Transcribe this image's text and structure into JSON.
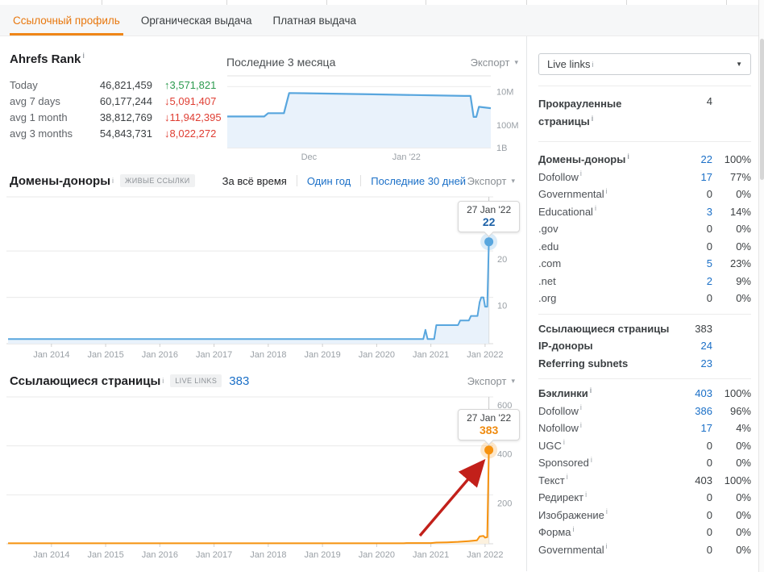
{
  "misc": {
    "export_label": "Экспорт",
    "caret_down": "▾",
    "select_caret": "▼",
    "info_glyph": "i",
    "up_arrow": "↑",
    "down_arrow": "↓"
  },
  "tabs": {
    "items": [
      {
        "id": "backlink-profile",
        "label": "Ссылочный профиль",
        "active": true
      },
      {
        "id": "organic-search",
        "label": "Органическая выдача",
        "active": false
      },
      {
        "id": "paid-search",
        "label": "Платная выдача",
        "active": false
      }
    ]
  },
  "rank_panel": {
    "title": "Ahrefs Rank",
    "rows": [
      {
        "label": "Today",
        "value": "46,821,459",
        "delta": "3,571,821",
        "dir": "up"
      },
      {
        "label": "avg 7 days",
        "value": "60,177,244",
        "delta": "5,091,407",
        "dir": "down"
      },
      {
        "label": "avg 1 month",
        "value": "38,812,769",
        "delta": "11,942,395",
        "dir": "down"
      },
      {
        "label": "avg 3 months",
        "value": "54,843,731",
        "delta": "8,022,272",
        "dir": "down"
      }
    ]
  },
  "sections": {
    "rank_chart": {
      "title": "Последние 3 месяца"
    },
    "domains": {
      "title": "Домены-доноры",
      "badge": "ЖИВЫЕ ССЫЛКИ",
      "filters": [
        {
          "label": "За всё время",
          "active": true
        },
        {
          "label": "Один год",
          "active": false
        },
        {
          "label": "Последние 30 дней",
          "active": false
        }
      ]
    },
    "pages": {
      "title": "Ссылающиеся страницы",
      "badge": "LIVE LINKS",
      "count": "383"
    }
  },
  "sidebar": {
    "filter_select": {
      "value": "Live links"
    },
    "crawled": {
      "label": "Прокрауленные страницы",
      "value": "4"
    },
    "groups": [
      {
        "name": "referring-domains",
        "rows": [
          {
            "label": "Домены-доноры",
            "info": true,
            "value": "22",
            "pct": "100%",
            "link": true,
            "bold": true
          },
          {
            "label": "Dofollow",
            "info": true,
            "value": "17",
            "pct": "77%",
            "link": true
          },
          {
            "label": "Governmental",
            "info": true,
            "value": "0",
            "pct": "0%"
          },
          {
            "label": "Educational",
            "info": true,
            "value": "3",
            "pct": "14%",
            "link": true
          },
          {
            "label": ".gov",
            "value": "0",
            "pct": "0%"
          },
          {
            "label": ".edu",
            "value": "0",
            "pct": "0%"
          },
          {
            "label": ".com",
            "value": "5",
            "pct": "23%",
            "link": true
          },
          {
            "label": ".net",
            "value": "2",
            "pct": "9%",
            "link": true
          },
          {
            "label": ".org",
            "value": "0",
            "pct": "0%"
          }
        ]
      },
      {
        "name": "referring-pages",
        "rows": [
          {
            "label": "Ссылающиеся страницы",
            "value": "383",
            "bold": true
          },
          {
            "label": "IP-доноры",
            "value": "24",
            "link": true,
            "bold": true
          },
          {
            "label": "Referring subnets",
            "value": "23",
            "link": true,
            "bold": true
          }
        ]
      },
      {
        "name": "backlinks",
        "rows": [
          {
            "label": "Бэклинки",
            "info": true,
            "value": "403",
            "pct": "100%",
            "link": true,
            "bold": true
          },
          {
            "label": "Dofollow",
            "info": true,
            "value": "386",
            "pct": "96%",
            "link": true
          },
          {
            "label": "Nofollow",
            "info": true,
            "value": "17",
            "pct": "4%",
            "link": true
          },
          {
            "label": "UGC",
            "info": true,
            "value": "0",
            "pct": "0%"
          },
          {
            "label": "Sponsored",
            "info": true,
            "value": "0",
            "pct": "0%"
          },
          {
            "label": "Текст",
            "info": true,
            "value": "403",
            "pct": "100%"
          },
          {
            "label": "Редирект",
            "info": true,
            "value": "0",
            "pct": "0%"
          },
          {
            "label": "Изображение",
            "info": true,
            "value": "0",
            "pct": "0%"
          },
          {
            "label": "Форма",
            "info": true,
            "value": "0",
            "pct": "0%"
          },
          {
            "label": "Governmental",
            "info": true,
            "value": "0",
            "pct": "0%"
          }
        ]
      }
    ]
  },
  "chart_data": [
    {
      "id": "ahrefs-rank-last-3-months",
      "type": "area",
      "title": "Последние 3 месяца",
      "scale": "inverted log rank (lower number = better, top of chart)",
      "y_gridlines": [
        {
          "pos": 0.15,
          "label": "10M"
        },
        {
          "pos": 0.617,
          "label": "100M"
        },
        {
          "pos": 1,
          "label": "1B"
        }
      ],
      "x_labels": [
        {
          "pct": 31,
          "label": "Dec"
        },
        {
          "pct": 68,
          "label": "Jan '22"
        }
      ],
      "series_pct_rank_millions": [
        [
          0,
          78
        ],
        [
          14,
          78
        ],
        [
          15.5,
          62
        ],
        [
          21.5,
          62
        ],
        [
          23.5,
          15.5
        ],
        [
          55,
          17
        ],
        [
          90,
          19
        ],
        [
          92.3,
          19
        ],
        [
          93.5,
          80
        ],
        [
          94.5,
          80
        ],
        [
          95.5,
          40
        ],
        [
          100,
          44
        ]
      ],
      "line_color": "#58a6de",
      "fill_color": "#e9f2fb"
    },
    {
      "id": "referring-domains-history",
      "type": "step-area",
      "title": "Домены-доноры (за всё время)",
      "x": {
        "min": 2013.17,
        "max": 2022.15
      },
      "y_max": 31.7,
      "gridlines": [
        {
          "v": 10,
          "label": "10"
        },
        {
          "v": 20,
          "label": "20"
        }
      ],
      "x_ticks": [
        {
          "t": 2014,
          "label": "Jan 2014"
        },
        {
          "t": 2015,
          "label": "Jan 2015"
        },
        {
          "t": 2016,
          "label": "Jan 2016"
        },
        {
          "t": 2017,
          "label": "Jan 2017"
        },
        {
          "t": 2018,
          "label": "Jan 2018"
        },
        {
          "t": 2019,
          "label": "Jan 2019"
        },
        {
          "t": 2020,
          "label": "Jan 2020"
        },
        {
          "t": 2021,
          "label": "Jan 2021"
        },
        {
          "t": 2022,
          "label": "Jan 2022"
        }
      ],
      "series": [
        [
          2013.2,
          1
        ],
        [
          2020.86,
          1
        ],
        [
          2020.9,
          3
        ],
        [
          2020.94,
          1
        ],
        [
          2021.06,
          1
        ],
        [
          2021.1,
          4
        ],
        [
          2021.5,
          4
        ],
        [
          2021.54,
          5
        ],
        [
          2021.7,
          5
        ],
        [
          2021.74,
          6
        ],
        [
          2021.86,
          6
        ],
        [
          2021.9,
          9
        ],
        [
          2021.93,
          10
        ],
        [
          2021.97,
          10
        ],
        [
          2022.0,
          8
        ],
        [
          2022.04,
          8
        ],
        [
          2022.07,
          22
        ]
      ],
      "marker": {
        "t": 2022.07,
        "v": 22,
        "date": "27 Jan '22",
        "value": "22"
      },
      "line_color": "#58a6de",
      "fill_color": "#e9f2fb",
      "value_color": "#1d62a8"
    },
    {
      "id": "referring-pages-history",
      "type": "step-area",
      "title": "Ссылающиеся страницы (за всё время)",
      "x": {
        "min": 2013.17,
        "max": 2022.15
      },
      "y_max": 600,
      "gridlines": [
        {
          "v": 200,
          "label": "200"
        },
        {
          "v": 400,
          "label": "400"
        },
        {
          "v": 600,
          "label": "600"
        }
      ],
      "x_ticks": [
        {
          "t": 2014,
          "label": "Jan 2014"
        },
        {
          "t": 2015,
          "label": "Jan 2015"
        },
        {
          "t": 2016,
          "label": "Jan 2016"
        },
        {
          "t": 2017,
          "label": "Jan 2017"
        },
        {
          "t": 2018,
          "label": "Jan 2018"
        },
        {
          "t": 2019,
          "label": "Jan 2019"
        },
        {
          "t": 2020,
          "label": "Jan 2020"
        },
        {
          "t": 2021,
          "label": "Jan 2021"
        },
        {
          "t": 2022,
          "label": "Jan 2022"
        }
      ],
      "series": [
        [
          2013.2,
          2
        ],
        [
          2020.5,
          2
        ],
        [
          2020.55,
          3
        ],
        [
          2021.0,
          3
        ],
        [
          2021.1,
          5
        ],
        [
          2021.3,
          6
        ],
        [
          2021.5,
          8
        ],
        [
          2021.7,
          11
        ],
        [
          2021.85,
          14
        ],
        [
          2021.9,
          30
        ],
        [
          2021.97,
          32
        ],
        [
          2022.0,
          25
        ],
        [
          2022.04,
          27
        ],
        [
          2022.07,
          383
        ]
      ],
      "marker": {
        "t": 2022.07,
        "v": 383,
        "date": "27 Jan '22",
        "value": "383"
      },
      "line_color": "#f6920f",
      "fill_color": "#fcf1de",
      "value_color": "#ef8b0f",
      "annotation_arrow": {
        "from": [
          521,
          178
        ],
        "to": [
          598,
          88
        ],
        "color": "#c2201a"
      }
    }
  ]
}
